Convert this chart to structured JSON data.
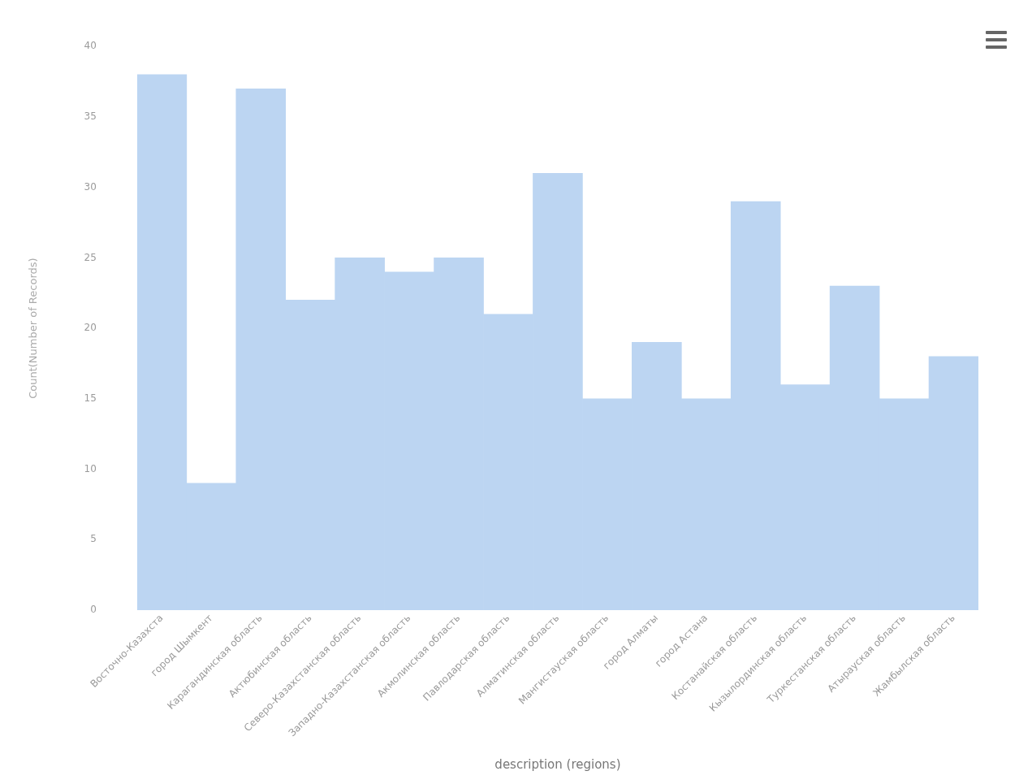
{
  "chart_data": {
    "type": "bar",
    "categories": [
      "Восточно-Казахста",
      "город Шымкент",
      "Карагандинская область",
      "Актюбинская область",
      "Северо-Казахстанская область",
      "Западно-Казахстанская область",
      "Акмолинская область",
      "Павлодарская область",
      "Алматинская область",
      "Мангистауская область",
      "город Алматы",
      "город Астана",
      "Костанайская область",
      "Кызылординская область",
      "Туркестанская область",
      "Атырауская область",
      "Жамбылская область"
    ],
    "series": [
      {
        "color": "#bcd5f2",
        "values": [
          38,
          9,
          37,
          22,
          25,
          24,
          25,
          21,
          31,
          15,
          19,
          15,
          29,
          16,
          23,
          15,
          18
        ]
      }
    ],
    "xlabel": "description (regions)",
    "ylabel": "Count(Number of Records)",
    "ylim": [
      0,
      40
    ],
    "yticks": [
      0,
      5,
      10,
      15,
      20,
      25,
      30,
      35,
      40
    ],
    "grid": false,
    "legend": false
  }
}
